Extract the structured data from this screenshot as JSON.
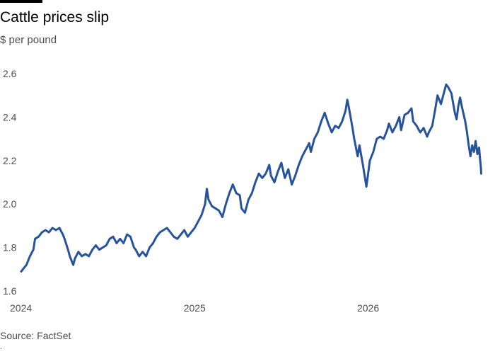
{
  "header": {
    "title": "Cattle prices slip",
    "subtitle": "$ per pound"
  },
  "footer": {
    "source": "Source: FactSet"
  },
  "colors": {
    "line": "#27539b",
    "tick_text": "#4d4d4d",
    "baseline": "#9e9e9e"
  },
  "chart_data": {
    "type": "line",
    "title": "Cattle prices slip",
    "ylabel": "$ per pound",
    "xlabel": "",
    "ylim": [
      1.6,
      2.6
    ],
    "yticks": [
      1.6,
      1.8,
      2.0,
      2.2,
      2.4,
      2.6
    ],
    "ytick_labels": [
      "1.6",
      "1.8",
      "2.0",
      "2.2",
      "2.4",
      "2.6"
    ],
    "xlim": [
      2024.0,
      2026.65
    ],
    "xticks": [
      2024,
      2025,
      2026
    ],
    "xtick_labels": [
      "2024",
      "2025",
      "2026"
    ],
    "grid": false,
    "legend": "none",
    "series": [
      {
        "values": [
          [
            2024.0,
            1.69
          ],
          [
            2024.02,
            1.71
          ],
          [
            2024.03,
            1.72
          ],
          [
            2024.05,
            1.76
          ],
          [
            2024.07,
            1.79
          ],
          [
            2024.08,
            1.84
          ],
          [
            2024.1,
            1.85
          ],
          [
            2024.12,
            1.87
          ],
          [
            2024.14,
            1.88
          ],
          [
            2024.16,
            1.87
          ],
          [
            2024.18,
            1.89
          ],
          [
            2024.2,
            1.88
          ],
          [
            2024.22,
            1.89
          ],
          [
            2024.24,
            1.86
          ],
          [
            2024.25,
            1.84
          ],
          [
            2024.27,
            1.79
          ],
          [
            2024.28,
            1.76
          ],
          [
            2024.3,
            1.72
          ],
          [
            2024.31,
            1.75
          ],
          [
            2024.33,
            1.78
          ],
          [
            2024.35,
            1.76
          ],
          [
            2024.37,
            1.77
          ],
          [
            2024.39,
            1.76
          ],
          [
            2024.41,
            1.79
          ],
          [
            2024.43,
            1.81
          ],
          [
            2024.45,
            1.79
          ],
          [
            2024.47,
            1.8
          ],
          [
            2024.49,
            1.81
          ],
          [
            2024.51,
            1.84
          ],
          [
            2024.53,
            1.85
          ],
          [
            2024.55,
            1.82
          ],
          [
            2024.57,
            1.84
          ],
          [
            2024.59,
            1.82
          ],
          [
            2024.61,
            1.86
          ],
          [
            2024.63,
            1.85
          ],
          [
            2024.65,
            1.8
          ],
          [
            2024.66,
            1.79
          ],
          [
            2024.68,
            1.76
          ],
          [
            2024.7,
            1.78
          ],
          [
            2024.72,
            1.76
          ],
          [
            2024.74,
            1.8
          ],
          [
            2024.76,
            1.82
          ],
          [
            2024.78,
            1.85
          ],
          [
            2024.8,
            1.87
          ],
          [
            2024.82,
            1.88
          ],
          [
            2024.84,
            1.89
          ],
          [
            2024.86,
            1.87
          ],
          [
            2024.88,
            1.85
          ],
          [
            2024.9,
            1.84
          ],
          [
            2024.92,
            1.86
          ],
          [
            2024.94,
            1.88
          ],
          [
            2024.96,
            1.85
          ],
          [
            2024.98,
            1.87
          ],
          [
            2025.0,
            1.89
          ],
          [
            2025.02,
            1.92
          ],
          [
            2025.04,
            1.95
          ],
          [
            2025.06,
            2.0
          ],
          [
            2025.07,
            2.07
          ],
          [
            2025.08,
            2.02
          ],
          [
            2025.1,
            1.99
          ],
          [
            2025.12,
            1.98
          ],
          [
            2025.14,
            1.97
          ],
          [
            2025.16,
            1.94
          ],
          [
            2025.18,
            2.0
          ],
          [
            2025.2,
            2.05
          ],
          [
            2025.22,
            2.09
          ],
          [
            2025.24,
            2.05
          ],
          [
            2025.26,
            2.04
          ],
          [
            2025.27,
            1.98
          ],
          [
            2025.29,
            1.96
          ],
          [
            2025.31,
            2.02
          ],
          [
            2025.33,
            2.05
          ],
          [
            2025.35,
            2.1
          ],
          [
            2025.37,
            2.14
          ],
          [
            2025.39,
            2.12
          ],
          [
            2025.41,
            2.14
          ],
          [
            2025.43,
            2.18
          ],
          [
            2025.44,
            2.13
          ],
          [
            2025.46,
            2.1
          ],
          [
            2025.48,
            2.15
          ],
          [
            2025.5,
            2.19
          ],
          [
            2025.52,
            2.12
          ],
          [
            2025.54,
            2.16
          ],
          [
            2025.56,
            2.09
          ],
          [
            2025.58,
            2.13
          ],
          [
            2025.6,
            2.18
          ],
          [
            2025.62,
            2.22
          ],
          [
            2025.64,
            2.25
          ],
          [
            2025.66,
            2.28
          ],
          [
            2025.67,
            2.24
          ],
          [
            2025.69,
            2.3
          ],
          [
            2025.71,
            2.33
          ],
          [
            2025.73,
            2.38
          ],
          [
            2025.75,
            2.42
          ],
          [
            2025.77,
            2.37
          ],
          [
            2025.79,
            2.33
          ],
          [
            2025.81,
            2.36
          ],
          [
            2025.83,
            2.35
          ],
          [
            2025.85,
            2.38
          ],
          [
            2025.87,
            2.43
          ],
          [
            2025.88,
            2.48
          ],
          [
            2025.89,
            2.44
          ],
          [
            2025.91,
            2.35
          ],
          [
            2025.92,
            2.3
          ],
          [
            2025.94,
            2.22
          ],
          [
            2025.95,
            2.27
          ],
          [
            2025.97,
            2.18
          ],
          [
            2025.99,
            2.08
          ],
          [
            2026.0,
            2.14
          ],
          [
            2026.01,
            2.2
          ],
          [
            2026.03,
            2.24
          ],
          [
            2026.05,
            2.3
          ],
          [
            2026.07,
            2.31
          ],
          [
            2026.09,
            2.3
          ],
          [
            2026.11,
            2.34
          ],
          [
            2026.12,
            2.37
          ],
          [
            2026.14,
            2.33
          ],
          [
            2026.16,
            2.36
          ],
          [
            2026.18,
            2.4
          ],
          [
            2026.19,
            2.34
          ],
          [
            2026.21,
            2.41
          ],
          [
            2026.23,
            2.42
          ],
          [
            2026.25,
            2.44
          ],
          [
            2026.26,
            2.38
          ],
          [
            2026.28,
            2.36
          ],
          [
            2026.3,
            2.33
          ],
          [
            2026.32,
            2.35
          ],
          [
            2026.34,
            2.31
          ],
          [
            2026.35,
            2.33
          ],
          [
            2026.37,
            2.36
          ],
          [
            2026.39,
            2.45
          ],
          [
            2026.4,
            2.5
          ],
          [
            2026.42,
            2.46
          ],
          [
            2026.43,
            2.49
          ],
          [
            2026.45,
            2.55
          ],
          [
            2026.46,
            2.54
          ],
          [
            2026.48,
            2.51
          ],
          [
            2026.5,
            2.42
          ],
          [
            2026.51,
            2.39
          ],
          [
            2026.52,
            2.45
          ],
          [
            2026.53,
            2.49
          ],
          [
            2026.54,
            2.45
          ],
          [
            2026.56,
            2.38
          ],
          [
            2026.57,
            2.33
          ],
          [
            2026.58,
            2.27
          ],
          [
            2026.59,
            2.22
          ],
          [
            2026.6,
            2.27
          ],
          [
            2026.61,
            2.24
          ],
          [
            2026.62,
            2.29
          ],
          [
            2026.63,
            2.23
          ],
          [
            2026.64,
            2.26
          ],
          [
            2026.645,
            2.21
          ],
          [
            2026.65,
            2.17
          ],
          [
            2026.652,
            2.14
          ]
        ]
      }
    ]
  }
}
